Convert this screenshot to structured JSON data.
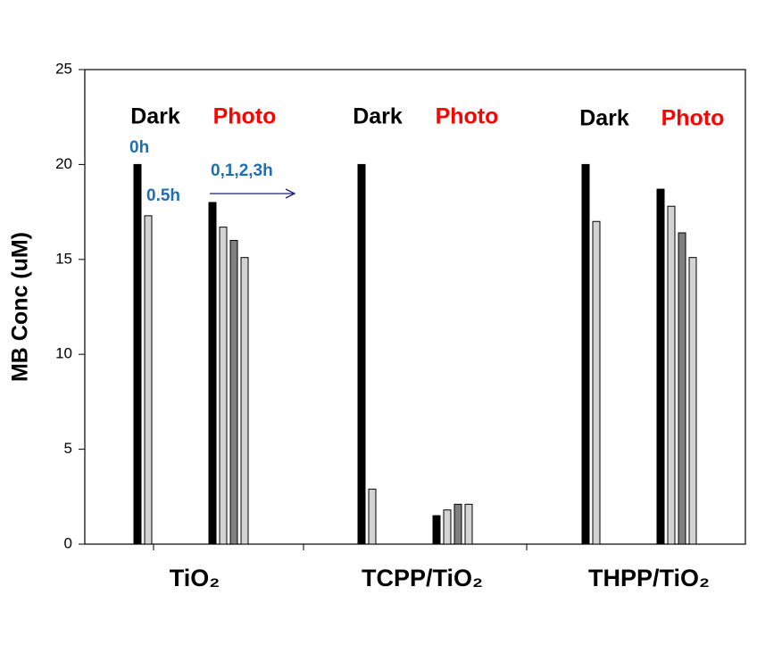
{
  "chart_data": {
    "type": "bar",
    "y_label": "MB Conc (uM)",
    "categories": [
      "TiO₂",
      "TCPP/TiO₂",
      "THPP/TiO₂"
    ],
    "condition_labels": [
      "Dark",
      "Photo"
    ],
    "condition_colors": [
      "#000000",
      "#ff0000"
    ],
    "annotations": [
      "0h",
      "0.5h",
      "0,1,2,3h"
    ],
    "series": [
      {
        "color": "#000000",
        "values": [
          20,
          20,
          20
        ]
      },
      {
        "color": "#d3d3d3",
        "values": [
          17.3,
          2.9,
          17.0
        ]
      },
      {
        "color": "#000000",
        "values": [
          18.0,
          1.5,
          18.7
        ]
      },
      {
        "color": "#d3d3d3",
        "values": [
          16.7,
          1.8,
          17.8
        ]
      },
      {
        "color": "#808080",
        "values": [
          16.0,
          2.1,
          16.4
        ]
      },
      {
        "color": "#d3d3d3",
        "values": [
          15.1,
          2.1,
          15.1
        ]
      }
    ],
    "ylim": [
      0,
      25
    ],
    "yticks": [
      0,
      5,
      10,
      15,
      20,
      25
    ]
  }
}
